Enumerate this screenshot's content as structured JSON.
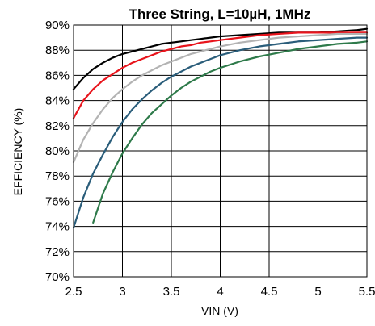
{
  "chart_data": {
    "type": "line",
    "title": "Three String, L=10µH, 1MHz",
    "xlabel": "VIN (V)",
    "ylabel": "EFFICIENCY (%)",
    "xlim": [
      2.5,
      5.5
    ],
    "ylim": [
      70,
      90
    ],
    "x_ticks": [
      2.5,
      3,
      3.5,
      4,
      4.5,
      5,
      5.5
    ],
    "x_tick_labels": [
      "2.5",
      "3",
      "3.5",
      "4",
      "4.5",
      "5",
      "5.5"
    ],
    "y_ticks": [
      70,
      72,
      74,
      76,
      78,
      80,
      82,
      84,
      86,
      88,
      90
    ],
    "y_tick_labels": [
      "70%",
      "72%",
      "74%",
      "76%",
      "78%",
      "80%",
      "82%",
      "84%",
      "86%",
      "88%",
      "90%"
    ],
    "grid": true,
    "legend": "none",
    "series": [
      {
        "color": "#000000",
        "x": [
          2.5,
          2.6,
          2.7,
          2.8,
          2.9,
          3.0,
          3.1,
          3.2,
          3.3,
          3.4,
          3.5,
          3.6,
          3.7,
          3.8,
          3.9,
          4.0,
          4.2,
          4.4,
          4.6,
          4.8,
          5.0,
          5.2,
          5.4,
          5.5
        ],
        "y": [
          84.9,
          85.8,
          86.5,
          87.0,
          87.4,
          87.7,
          87.9,
          88.1,
          88.3,
          88.5,
          88.6,
          88.7,
          88.8,
          88.9,
          89.0,
          89.1,
          89.2,
          89.3,
          89.4,
          89.4,
          89.4,
          89.5,
          89.6,
          89.7
        ]
      },
      {
        "color": "#e8141c",
        "x": [
          2.5,
          2.6,
          2.7,
          2.8,
          2.9,
          3.0,
          3.1,
          3.2,
          3.3,
          3.4,
          3.5,
          3.6,
          3.7,
          3.8,
          3.9,
          4.0,
          4.2,
          4.4,
          4.6,
          4.8,
          5.0,
          5.2,
          5.4,
          5.5
        ],
        "y": [
          82.6,
          84.0,
          84.9,
          85.6,
          86.1,
          86.6,
          87.0,
          87.3,
          87.6,
          87.9,
          88.1,
          88.3,
          88.4,
          88.6,
          88.7,
          88.8,
          89.0,
          89.2,
          89.3,
          89.4,
          89.4,
          89.4,
          89.4,
          89.4
        ]
      },
      {
        "color": "#b3b3b3",
        "x": [
          2.5,
          2.6,
          2.7,
          2.8,
          2.9,
          3.0,
          3.1,
          3.2,
          3.3,
          3.4,
          3.5,
          3.6,
          3.7,
          3.8,
          3.9,
          4.0,
          4.2,
          4.4,
          4.6,
          4.8,
          5.0,
          5.2,
          5.4,
          5.5
        ],
        "y": [
          79.1,
          80.9,
          82.2,
          83.3,
          84.2,
          84.9,
          85.5,
          86.0,
          86.4,
          86.8,
          87.1,
          87.4,
          87.7,
          87.9,
          88.1,
          88.3,
          88.6,
          88.8,
          89.0,
          89.1,
          89.2,
          89.3,
          89.3,
          89.3
        ]
      },
      {
        "color": "#2a5d7a",
        "x": [
          2.5,
          2.6,
          2.7,
          2.8,
          2.9,
          3.0,
          3.1,
          3.2,
          3.3,
          3.4,
          3.5,
          3.6,
          3.7,
          3.8,
          3.9,
          4.0,
          4.2,
          4.4,
          4.6,
          4.8,
          5.0,
          5.2,
          5.4,
          5.5
        ],
        "y": [
          73.9,
          76.3,
          78.2,
          79.7,
          81.1,
          82.3,
          83.3,
          84.1,
          84.8,
          85.4,
          85.9,
          86.3,
          86.7,
          87.0,
          87.3,
          87.6,
          88.0,
          88.3,
          88.5,
          88.7,
          88.8,
          88.9,
          89.0,
          89.0
        ]
      },
      {
        "color": "#2e7a4a",
        "x": [
          2.7,
          2.8,
          2.9,
          3.0,
          3.1,
          3.2,
          3.3,
          3.4,
          3.5,
          3.6,
          3.7,
          3.8,
          3.9,
          4.0,
          4.2,
          4.4,
          4.6,
          4.8,
          5.0,
          5.2,
          5.4,
          5.5
        ],
        "y": [
          74.3,
          76.6,
          78.3,
          79.8,
          81.0,
          82.1,
          83.0,
          83.7,
          84.4,
          85.0,
          85.5,
          85.9,
          86.3,
          86.6,
          87.1,
          87.5,
          87.8,
          88.1,
          88.3,
          88.5,
          88.6,
          88.7
        ]
      }
    ]
  }
}
